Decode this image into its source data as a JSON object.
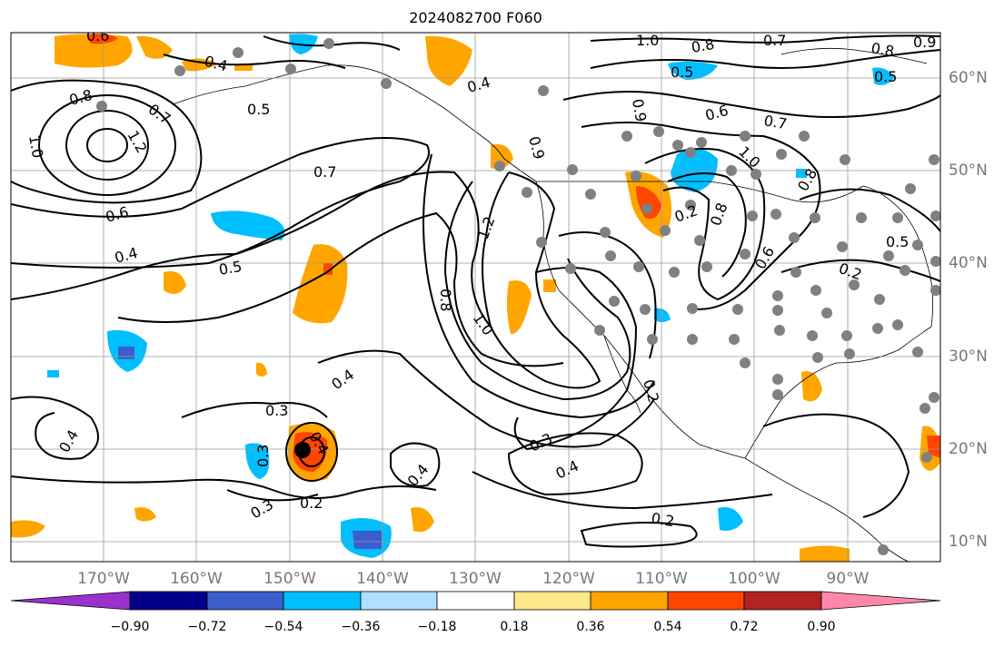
{
  "title": "2024082700 F060",
  "map": {
    "projection": "lat-lon",
    "lon_range": [
      "-180",
      "-80"
    ],
    "lat_range": [
      "8",
      "65"
    ],
    "grid": true,
    "gridline_color": "#999999",
    "lon_labels": [
      "170°W",
      "160°W",
      "150°W",
      "140°W",
      "130°W",
      "120°W",
      "110°W",
      "100°W",
      "90°W"
    ],
    "lat_labels": [
      "60°N",
      "50°N",
      "40°N",
      "30°N",
      "20°N",
      "10°N"
    ],
    "contour_labels": [
      "0.6",
      "0.4",
      "0.5",
      "0.8",
      "0.7",
      "1.0",
      "1.2",
      "0.7",
      "0.6",
      "0.4",
      "0.5",
      "0.4",
      "1.0",
      "0.8",
      "0.7",
      "0.8",
      "0.9",
      "0.5",
      "0.5",
      "0.6",
      "0.7",
      "1.0",
      "0.8",
      "0.9",
      "0.2",
      "1.2",
      "0.8",
      "1.0",
      "0.4",
      "0.3",
      "0.4",
      "0.3",
      "0.2",
      "0.4",
      "0.3",
      "0.4",
      "0.2",
      "0.9",
      "0.6",
      "0.5",
      "0.8",
      "0.2",
      "0.3",
      "0.4",
      "0.2"
    ],
    "station_dot_color": "#808080",
    "center_marker_color": "#000000"
  },
  "colorbar": {
    "ticks": [
      "−0.90",
      "−0.72",
      "−0.54",
      "−0.36",
      "−0.18",
      "0.18",
      "0.36",
      "0.54",
      "0.72",
      "0.90"
    ],
    "colors": [
      "#9932cc",
      "#00008b",
      "#3a5fcd",
      "#00bfff",
      "#aedfff",
      "#ffffff",
      "#fde98c",
      "#ffa500",
      "#ff4500",
      "#b22222",
      "#ff88aa"
    ]
  }
}
